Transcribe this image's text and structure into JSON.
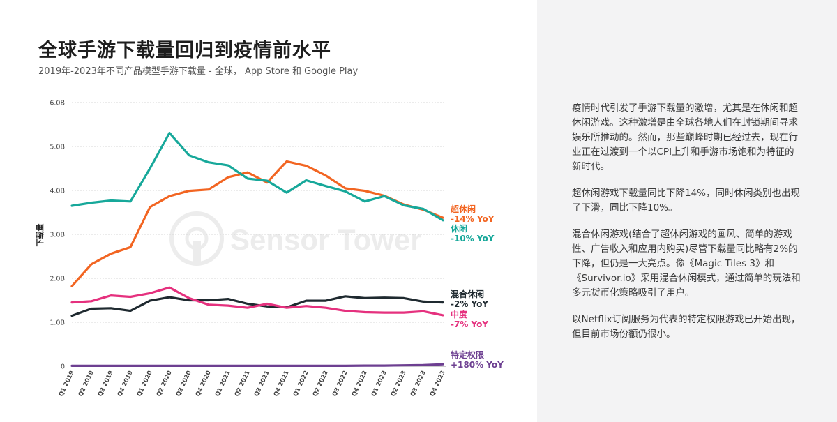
{
  "header": {
    "title": "全球手游下载量回归到疫情前水平",
    "subtitle": "2019年-2023年不同产品模型手游下载量 - 全球， App Store 和 Google Play"
  },
  "watermark": {
    "logo_text": "Sensor Tower"
  },
  "colors": {
    "hypercasual": "#f26522",
    "casual": "#17a89a",
    "hybridcasual": "#1f2a30",
    "midcore": "#e5317e",
    "privileged": "#6d3f91",
    "grid": "#d7d7d7",
    "right_panel_bg": "#f3f3f4"
  },
  "panel": {
    "paragraphs": [
      "疫情时代引发了手游下载量的激增，尤其是在休闲和超休闲游戏。这种激增是由全球各地人们在封锁期间寻求娱乐所推动的。然而，那些巅峰时期已经过去，现在行业正在过渡到一个以CPI上升和手游市场饱和为特征的新时代。",
      "超休闲游戏下载量同比下降14%，同时休闲类别也出现了下滑，同比下降10%。",
      "混合休闲游戏(结合了超休闲游戏的画风、简单的游戏性、广告收入和应用内购买)尽管下载量同比略有2%的下降，但仍是一大亮点。像《Magic Tiles 3》和《Survivor.io》采用混合休闲模式，通过简单的玩法和多元货币化策略吸引了用户。",
      "以Netflix订阅服务为代表的特定权限游戏已开始出现，但目前市场份额仍很小。"
    ]
  },
  "chart_data": {
    "type": "line",
    "ylabel": "下载量",
    "xlabel": "",
    "ylim": [
      0,
      6
    ],
    "yticks": [
      "0",
      "1.0B",
      "2.0B",
      "3.0B",
      "4.0B",
      "5.0B",
      "6.0B"
    ],
    "grid": true,
    "categories": [
      "Q1 2019",
      "Q2 2019",
      "Q3 2019",
      "Q4 2019",
      "Q1 2020",
      "Q2 2020",
      "Q3 2020",
      "Q4 2020",
      "Q1 2021",
      "Q2 2021",
      "Q3 2021",
      "Q4 2021",
      "Q1 2022",
      "Q2 2022",
      "Q3 2022",
      "Q4 2022",
      "Q1 2023",
      "Q2 2023",
      "Q3 2023",
      "Q4 2023"
    ],
    "series": [
      {
        "name": "超休闲",
        "yoy": "-14% YoY",
        "colorKey": "hypercasual",
        "values": [
          1.82,
          2.32,
          2.56,
          2.71,
          3.62,
          3.87,
          3.99,
          4.02,
          4.3,
          4.41,
          4.18,
          4.66,
          4.56,
          4.34,
          4.05,
          3.99,
          3.88,
          3.68,
          3.56,
          3.38
        ]
      },
      {
        "name": "休闲",
        "yoy": "-10% YoY",
        "colorKey": "casual",
        "values": [
          3.65,
          3.72,
          3.77,
          3.75,
          4.5,
          5.31,
          4.8,
          4.64,
          4.57,
          4.27,
          4.22,
          3.95,
          4.23,
          4.1,
          3.98,
          3.75,
          3.87,
          3.66,
          3.58,
          3.32
        ]
      },
      {
        "name": "混合休闲",
        "yoy": "-2% YoY",
        "colorKey": "hybridcasual",
        "values": [
          1.15,
          1.31,
          1.32,
          1.26,
          1.49,
          1.57,
          1.5,
          1.5,
          1.53,
          1.42,
          1.36,
          1.34,
          1.49,
          1.49,
          1.59,
          1.55,
          1.56,
          1.55,
          1.47,
          1.45
        ]
      },
      {
        "name": "中度",
        "yoy": "-7% YoY",
        "colorKey": "midcore",
        "values": [
          1.45,
          1.48,
          1.61,
          1.58,
          1.66,
          1.79,
          1.55,
          1.4,
          1.38,
          1.33,
          1.42,
          1.33,
          1.37,
          1.33,
          1.26,
          1.23,
          1.22,
          1.22,
          1.25,
          1.16
        ]
      },
      {
        "name": "特定权限",
        "yoy": "+180% YoY",
        "colorKey": "privileged",
        "values": [
          0.01,
          0.01,
          0.01,
          0.01,
          0.01,
          0.01,
          0.01,
          0.01,
          0.01,
          0.01,
          0.01,
          0.01,
          0.01,
          0.01,
          0.01,
          0.015,
          0.015,
          0.02,
          0.025,
          0.045
        ]
      }
    ]
  }
}
